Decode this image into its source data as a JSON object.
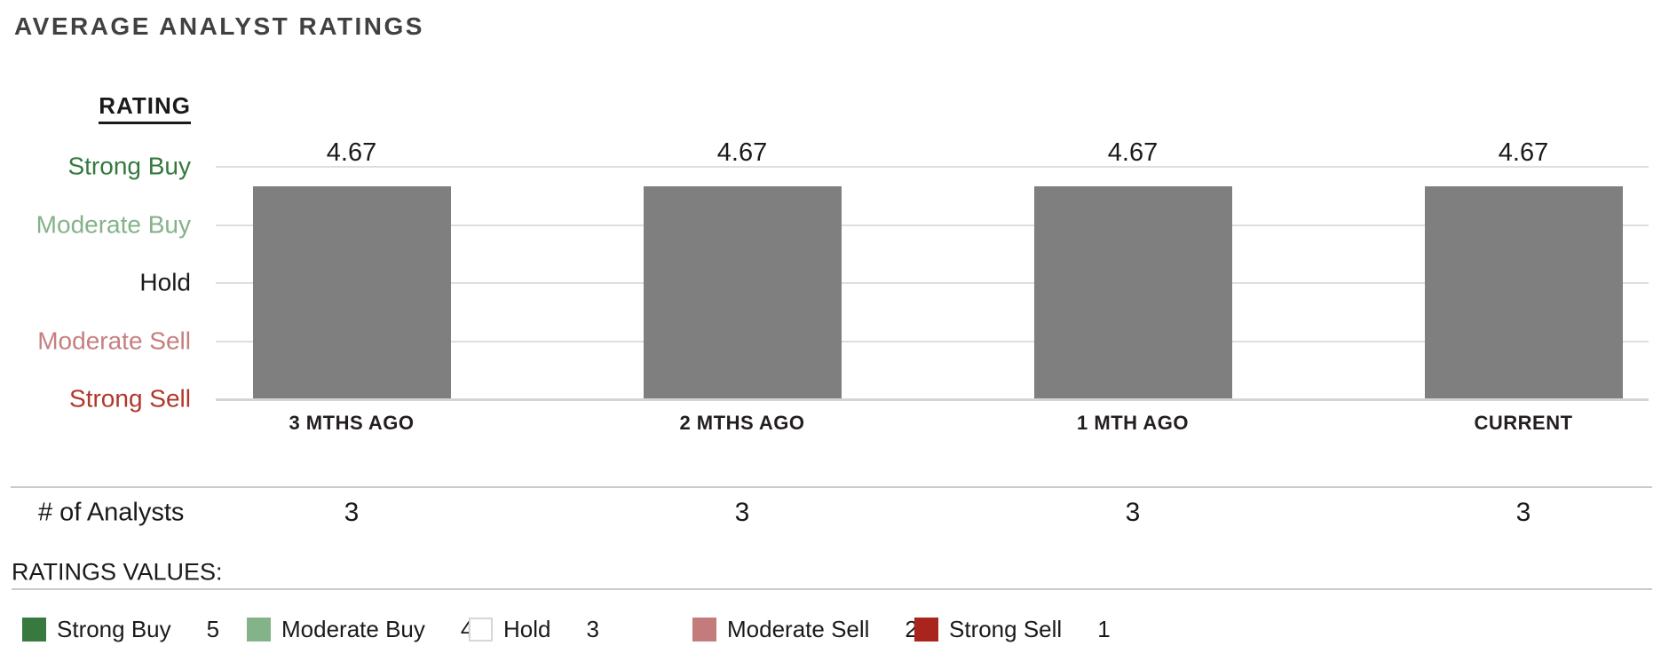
{
  "header": {
    "title": "AVERAGE ANALYST RATINGS"
  },
  "chart_data": {
    "type": "bar",
    "title": "AVERAGE ANALYST RATINGS",
    "y_axis_title": "RATING",
    "categories": [
      "3 MTHS AGO",
      "2 MTHS AGO",
      "1 MTH AGO",
      "CURRENT"
    ],
    "values": [
      4.67,
      4.67,
      4.67,
      4.67
    ],
    "value_labels": [
      "4.67",
      "4.67",
      "4.67",
      "4.67"
    ],
    "ylim": [
      1,
      5
    ],
    "grid": true,
    "bar_color": "#7f7f7f",
    "gridline_color": "#dedede",
    "y_tick_levels": [
      {
        "label": "Strong Buy",
        "value": 5,
        "color": "#35793f"
      },
      {
        "label": "Moderate Buy",
        "value": 4,
        "color": "#84b389"
      },
      {
        "label": "Hold",
        "value": 3,
        "color": "#1a1a1a"
      },
      {
        "label": "Moderate Sell",
        "value": 2,
        "color": "#c57f7f"
      },
      {
        "label": "Strong Sell",
        "value": 1,
        "color": "#b2362b"
      }
    ],
    "legend_position": "bottom"
  },
  "analysts": {
    "label": "# of Analysts",
    "counts": [
      "3",
      "3",
      "3",
      "3"
    ]
  },
  "ratings_values": {
    "heading": "RATINGS VALUES:",
    "items": [
      {
        "label": "Strong Buy",
        "value": "5",
        "color": "#37793f",
        "border": ""
      },
      {
        "label": "Moderate Buy",
        "value": "4",
        "color": "#84b389",
        "border": ""
      },
      {
        "label": "Hold",
        "value": "3",
        "color": "#ffffff",
        "border": "#d6d6d6"
      },
      {
        "label": "Moderate Sell",
        "value": "2",
        "color": "#c47b7b",
        "border": ""
      },
      {
        "label": "Strong Sell",
        "value": "1",
        "color": "#a8241c",
        "border": ""
      }
    ]
  }
}
